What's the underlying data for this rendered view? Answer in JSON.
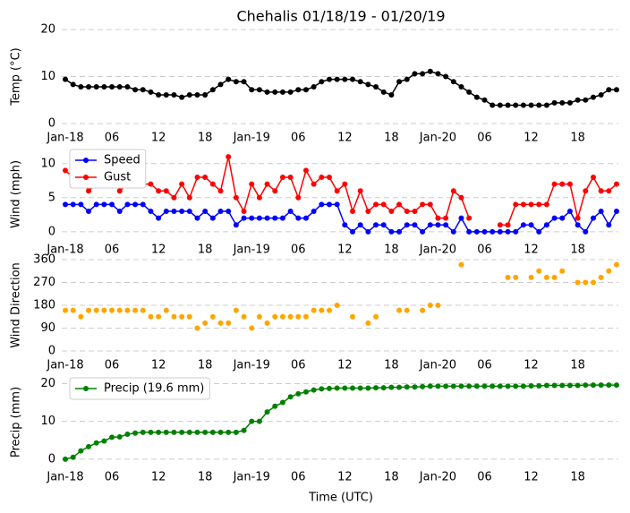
{
  "chart_data": [
    {
      "type": "line",
      "title": "Chehalis 01/18/19 - 01/20/19",
      "ylabel": "Temp (°C)",
      "color": "#000000",
      "x": [
        0,
        1,
        2,
        3,
        4,
        5,
        6,
        7,
        8,
        9,
        10,
        11,
        12,
        13,
        14,
        15,
        16,
        17,
        18,
        19,
        20,
        21,
        22,
        23,
        24,
        25,
        26,
        27,
        28,
        29,
        30,
        31,
        32,
        33,
        34,
        35,
        36,
        37,
        38,
        39,
        40,
        41,
        42,
        43,
        44,
        45,
        46,
        47,
        48,
        49,
        50,
        51,
        52,
        53,
        54,
        55,
        56,
        57,
        58,
        59,
        60,
        61,
        62,
        63,
        64,
        65,
        66,
        67,
        68,
        69,
        70,
        71
      ],
      "values": [
        9.4,
        8.3,
        7.8,
        7.8,
        7.8,
        7.8,
        7.8,
        7.8,
        7.8,
        7.2,
        7.2,
        6.7,
        6.1,
        6.1,
        6.1,
        5.6,
        6.1,
        6.1,
        6.1,
        7.2,
        8.3,
        9.4,
        8.9,
        8.9,
        7.2,
        7.2,
        6.7,
        6.7,
        6.7,
        6.7,
        7.2,
        7.2,
        7.8,
        8.9,
        9.4,
        9.4,
        9.4,
        9.4,
        8.9,
        8.3,
        7.8,
        6.7,
        6.1,
        8.9,
        9.4,
        10.6,
        10.6,
        11.1,
        10.6,
        10.0,
        8.9,
        7.8,
        6.7,
        5.6,
        5.0,
        3.9,
        3.9,
        3.9,
        3.9,
        3.9,
        3.9,
        3.9,
        3.9,
        4.4,
        4.4,
        4.4,
        5.0,
        5.0,
        5.6,
        6.1,
        7.2,
        7.2
      ],
      "xlim": [
        0,
        71
      ],
      "xticks": [
        {
          "value": 0,
          "label": "Jan-18"
        },
        {
          "value": 6,
          "label": "06"
        },
        12,
        18,
        {
          "value": 24,
          "label": "Jan-19"
        },
        {
          "value": 30,
          "label": "06"
        },
        {
          "value": 36,
          "label": "12"
        },
        {
          "value": 42,
          "label": "18"
        },
        {
          "value": 48,
          "label": "Jan-20"
        },
        {
          "value": 54,
          "label": "06"
        },
        {
          "value": 60,
          "label": "12"
        },
        {
          "value": 66,
          "label": "18"
        }
      ],
      "ylim": [
        0,
        20
      ],
      "yticks": [
        0,
        10,
        20
      ],
      "grid": true
    },
    {
      "type": "line",
      "ylabel": "Wind (mph)",
      "legend": "upper left",
      "x": [
        0,
        1,
        2,
        3,
        4,
        5,
        6,
        7,
        8,
        9,
        10,
        11,
        12,
        13,
        14,
        15,
        16,
        17,
        18,
        19,
        20,
        21,
        22,
        23,
        24,
        25,
        26,
        27,
        28,
        29,
        30,
        31,
        32,
        33,
        34,
        35,
        36,
        37,
        38,
        39,
        40,
        41,
        42,
        43,
        44,
        45,
        46,
        47,
        48,
        49,
        50,
        51,
        52,
        53,
        54,
        55,
        56,
        57,
        58,
        59,
        60,
        61,
        62,
        63,
        64,
        65,
        66,
        67,
        68,
        69,
        70,
        71
      ],
      "series": [
        {
          "name": "Speed",
          "color": "#0000ff",
          "values": [
            4,
            4,
            4,
            3,
            4,
            4,
            4,
            3,
            4,
            4,
            4,
            3,
            2,
            3,
            3,
            3,
            3,
            2,
            3,
            2,
            3,
            3,
            1,
            2,
            2,
            2,
            2,
            2,
            2,
            3,
            2,
            2,
            3,
            4,
            4,
            4,
            1,
            0,
            1,
            0,
            1,
            1,
            0,
            0,
            1,
            1,
            0,
            1,
            1,
            1,
            0,
            2,
            0,
            0,
            0,
            0,
            0,
            0,
            0,
            1,
            1,
            0,
            1,
            2,
            2,
            3,
            1,
            0,
            2,
            3,
            1,
            3
          ]
        },
        {
          "name": "Gust",
          "color": "#ff0000",
          "values": [
            9,
            8,
            8,
            6,
            7,
            7,
            9,
            6,
            7,
            8,
            7,
            7,
            6,
            6,
            5,
            7,
            5,
            8,
            8,
            7,
            6,
            11,
            5,
            3,
            7,
            5,
            7,
            6,
            8,
            8,
            5,
            9,
            7,
            8,
            8,
            6,
            7,
            3,
            6,
            3,
            4,
            4,
            3,
            4,
            3,
            3,
            4,
            4,
            2,
            2,
            6,
            5,
            2,
            null,
            null,
            null,
            1,
            1,
            4,
            4,
            4,
            4,
            4,
            7,
            7,
            7,
            2,
            6,
            8,
            6,
            6,
            7
          ]
        }
      ],
      "xlim": [
        0,
        71
      ],
      "xticks": [
        {
          "value": 0,
          "label": "Jan-18"
        },
        {
          "value": 6,
          "label": "06"
        },
        12,
        18,
        {
          "value": 24,
          "label": "Jan-19"
        },
        {
          "value": 30,
          "label": "06"
        },
        {
          "value": 36,
          "label": "12"
        },
        {
          "value": 42,
          "label": "18"
        },
        {
          "value": 48,
          "label": "Jan-20"
        },
        {
          "value": 54,
          "label": "06"
        },
        {
          "value": 60,
          "label": "12"
        },
        {
          "value": 66,
          "label": "18"
        }
      ],
      "ylim": [
        -0.55,
        11.55
      ],
      "yticks": [
        0,
        5,
        10
      ],
      "grid": true
    },
    {
      "type": "scatter",
      "ylabel": "Wind Direction",
      "color": "#ffa500",
      "x": [
        0,
        1,
        2,
        3,
        4,
        5,
        6,
        7,
        8,
        9,
        10,
        11,
        12,
        13,
        14,
        15,
        16,
        17,
        18,
        19,
        20,
        21,
        22,
        23,
        24,
        25,
        26,
        27,
        28,
        29,
        30,
        31,
        32,
        33,
        34,
        35,
        36,
        37,
        38,
        39,
        40,
        41,
        42,
        43,
        44,
        45,
        46,
        47,
        48,
        49,
        50,
        51,
        52,
        53,
        54,
        55,
        56,
        57,
        58,
        59,
        60,
        61,
        62,
        63,
        64,
        65,
        66,
        67,
        68,
        69,
        70,
        71
      ],
      "values": [
        160,
        160,
        135,
        160,
        160,
        160,
        160,
        160,
        160,
        160,
        160,
        135,
        135,
        160,
        135,
        135,
        135,
        90,
        110,
        135,
        110,
        110,
        160,
        135,
        90,
        135,
        110,
        135,
        135,
        135,
        135,
        135,
        160,
        160,
        160,
        180,
        null,
        135,
        null,
        110,
        135,
        null,
        null,
        160,
        160,
        null,
        160,
        180,
        180,
        null,
        null,
        340,
        null,
        null,
        null,
        null,
        null,
        290,
        290,
        null,
        290,
        315,
        290,
        290,
        315,
        null,
        270,
        270,
        270,
        290,
        315,
        340
      ],
      "xlim": [
        0,
        71
      ],
      "xticks": [
        {
          "value": 0,
          "label": "Jan-18"
        },
        {
          "value": 6,
          "label": "06"
        },
        12,
        18,
        {
          "value": 24,
          "label": "Jan-19"
        },
        {
          "value": 30,
          "label": "06"
        },
        {
          "value": 36,
          "label": "12"
        },
        {
          "value": 42,
          "label": "18"
        },
        {
          "value": 48,
          "label": "Jan-20"
        },
        {
          "value": 54,
          "label": "06"
        },
        {
          "value": 60,
          "label": "12"
        },
        {
          "value": 66,
          "label": "18"
        }
      ],
      "ylim": [
        0,
        360
      ],
      "yticks": [
        0,
        90,
        180,
        270,
        360
      ],
      "grid": true
    },
    {
      "type": "line",
      "ylabel": "Precip (mm)",
      "xlabel": "Time (UTC)",
      "legend": "upper left",
      "x": [
        0,
        1,
        2,
        3,
        4,
        5,
        6,
        7,
        8,
        9,
        10,
        11,
        12,
        13,
        14,
        15,
        16,
        17,
        18,
        19,
        20,
        21,
        22,
        23,
        24,
        25,
        26,
        27,
        28,
        29,
        30,
        31,
        32,
        33,
        34,
        35,
        36,
        37,
        38,
        39,
        40,
        41,
        42,
        43,
        44,
        45,
        46,
        47,
        48,
        49,
        50,
        51,
        52,
        53,
        54,
        55,
        56,
        57,
        58,
        59,
        60,
        61,
        62,
        63,
        64,
        65,
        66,
        67,
        68,
        69,
        70,
        71
      ],
      "series": [
        {
          "name": "Precip (19.6 mm)",
          "color": "#008000",
          "values": [
            0,
            0.5,
            2.2,
            3.3,
            4.3,
            4.8,
            5.8,
            5.9,
            6.6,
            6.9,
            7.1,
            7.1,
            7.1,
            7.1,
            7.1,
            7.1,
            7.1,
            7.1,
            7.1,
            7.1,
            7.1,
            7.1,
            7.1,
            7.6,
            10.0,
            10.0,
            12.5,
            14.0,
            15.0,
            16.5,
            17.3,
            17.8,
            18.3,
            18.6,
            18.7,
            18.8,
            18.8,
            18.8,
            18.8,
            18.8,
            18.9,
            18.9,
            19.0,
            19.0,
            19.1,
            19.1,
            19.2,
            19.3,
            19.3,
            19.3,
            19.3,
            19.3,
            19.3,
            19.3,
            19.3,
            19.3,
            19.3,
            19.3,
            19.3,
            19.3,
            19.4,
            19.4,
            19.5,
            19.5,
            19.5,
            19.5,
            19.5,
            19.6,
            19.6,
            19.6,
            19.6,
            19.6
          ]
        }
      ],
      "xlim": [
        0,
        71
      ],
      "xticks": [
        {
          "value": 0,
          "label": "Jan-18"
        },
        {
          "value": 6,
          "label": "06"
        },
        12,
        18,
        {
          "value": 24,
          "label": "Jan-19"
        },
        {
          "value": 30,
          "label": "06"
        },
        {
          "value": 36,
          "label": "12"
        },
        {
          "value": 42,
          "label": "18"
        },
        {
          "value": 48,
          "label": "Jan-20"
        },
        {
          "value": 54,
          "label": "06"
        },
        {
          "value": 60,
          "label": "12"
        },
        {
          "value": 66,
          "label": "18"
        }
      ],
      "ylim": [
        -0.98,
        20.58
      ],
      "yticks": [
        0,
        10,
        20
      ],
      "grid": true
    }
  ]
}
